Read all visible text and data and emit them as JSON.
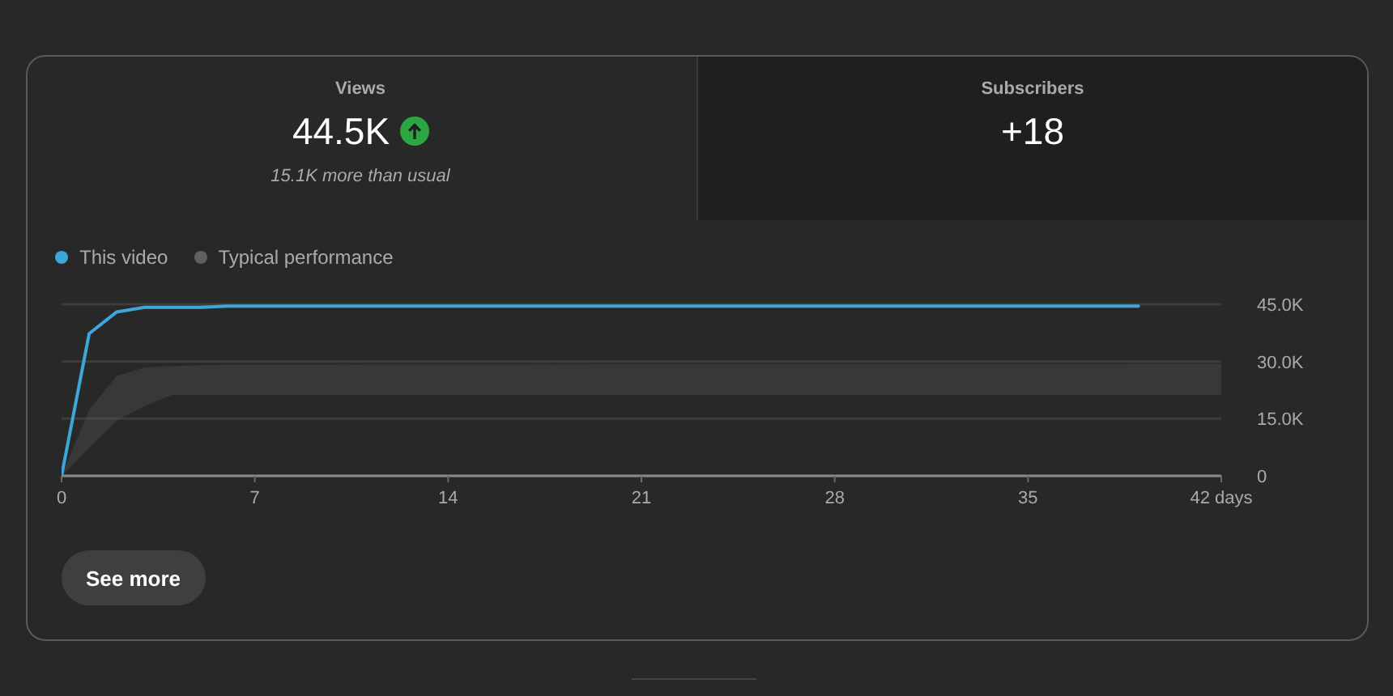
{
  "chart_data": {
    "type": "line",
    "annotations": [
      "Views",
      "44.5K",
      "15.1K more than usual",
      "Subscribers",
      "+18",
      "See more"
    ],
    "series": [
      {
        "name": "This video",
        "color": "#3ea6d8",
        "x": [
          0,
          1,
          2,
          3,
          4,
          5,
          6,
          39
        ],
        "values": [
          0,
          37300,
          43000,
          44200,
          44200,
          44200,
          44500,
          44500
        ]
      },
      {
        "name": "Typical performance",
        "type": "area",
        "color": "#606060",
        "x": [
          0,
          1,
          2,
          3,
          4,
          5,
          6,
          42
        ],
        "values": [
          null,
          null,
          null,
          null,
          null,
          null,
          null,
          null
        ],
        "lower": [
          0,
          7400,
          14500,
          18300,
          21200,
          21200,
          21200,
          21200
        ],
        "upper": [
          0,
          17300,
          26200,
          28400,
          28800,
          29000,
          29200,
          29400
        ]
      }
    ],
    "xlim": [
      0,
      42
    ],
    "xticks": [
      0,
      7,
      14,
      21,
      28,
      35,
      {
        "value": 42,
        "label": "42 days"
      }
    ],
    "ylim": [
      0,
      45000
    ],
    "yticks": [
      0,
      {
        "value": 15000,
        "label": "15.0K"
      },
      {
        "value": 30000,
        "label": "30.0K"
      },
      {
        "value": 45000,
        "label": "45.0K"
      }
    ],
    "grid": "y",
    "legend": "top left"
  }
}
